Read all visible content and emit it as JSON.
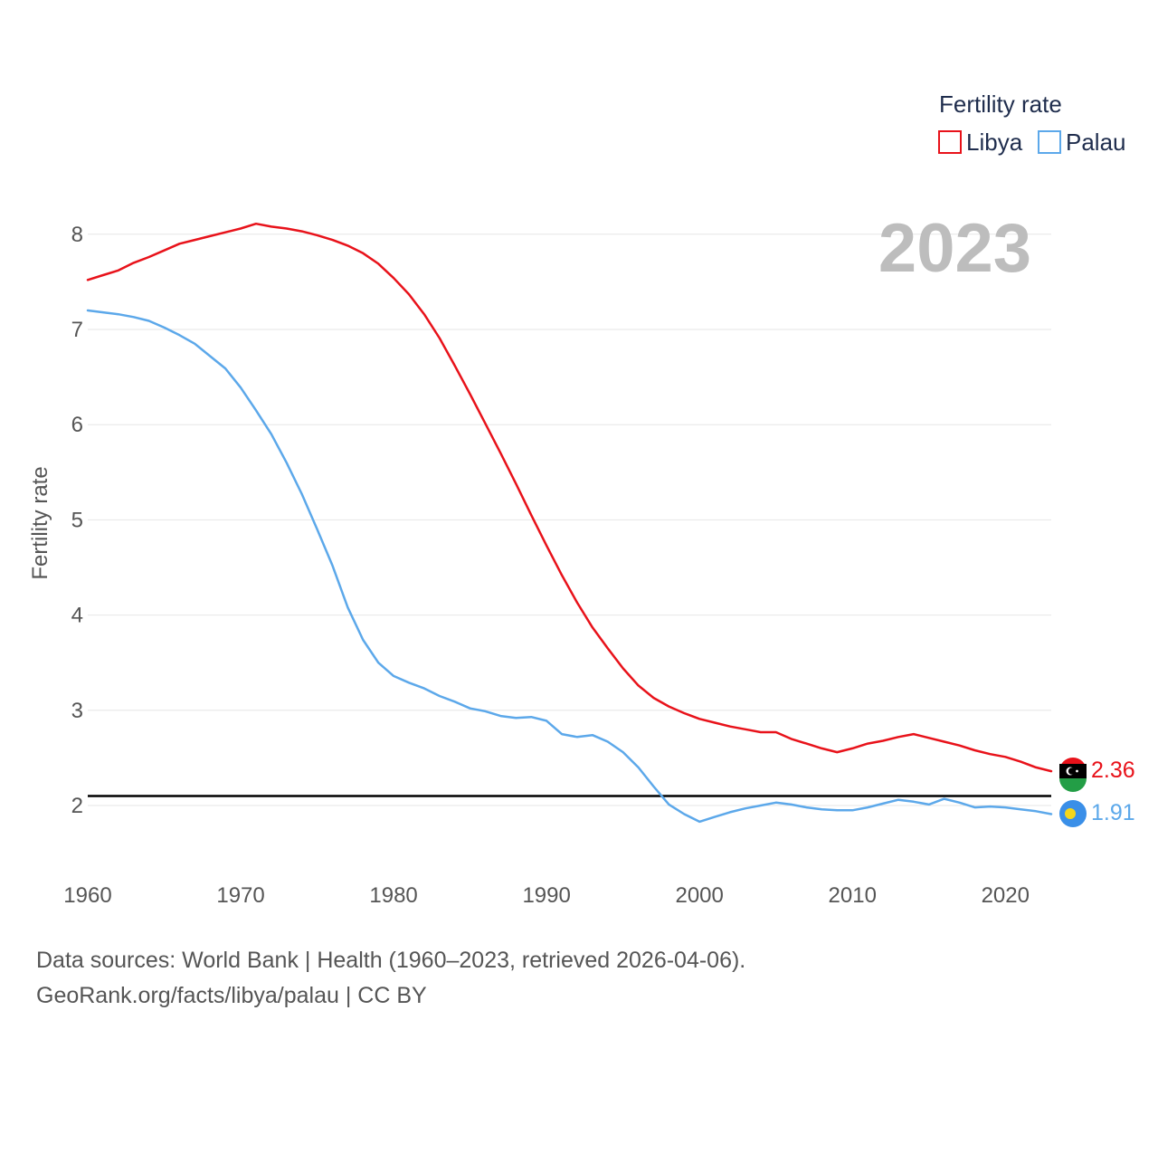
{
  "chart_data": {
    "type": "line",
    "title": "",
    "xlabel": "",
    "ylabel": "Fertility rate",
    "xlim": [
      1960,
      2023
    ],
    "ylim": [
      1.4,
      8.5
    ],
    "x_ticks": [
      "1960",
      "1970",
      "1980",
      "1990",
      "2000",
      "2010",
      "2020"
    ],
    "y_ticks": [
      "2",
      "3",
      "4",
      "5",
      "6",
      "7",
      "8"
    ],
    "year_display": "2023",
    "legend": {
      "title": "Fertility rate",
      "position": "top-right"
    },
    "reference_line": {
      "value": 2.1
    },
    "x": [
      1960,
      1961,
      1962,
      1963,
      1964,
      1965,
      1966,
      1967,
      1968,
      1969,
      1970,
      1971,
      1972,
      1973,
      1974,
      1975,
      1976,
      1977,
      1978,
      1979,
      1980,
      1981,
      1982,
      1983,
      1984,
      1985,
      1986,
      1987,
      1988,
      1989,
      1990,
      1991,
      1992,
      1993,
      1994,
      1995,
      1996,
      1997,
      1998,
      1999,
      2000,
      2001,
      2002,
      2003,
      2004,
      2005,
      2006,
      2007,
      2008,
      2009,
      2010,
      2011,
      2012,
      2013,
      2014,
      2015,
      2016,
      2017,
      2018,
      2019,
      2020,
      2021,
      2022,
      2023
    ],
    "series": [
      {
        "name": "Libya",
        "color": "#e8121a",
        "end_label": "2.36",
        "values": [
          7.52,
          7.57,
          7.62,
          7.7,
          7.76,
          7.83,
          7.9,
          7.94,
          7.98,
          8.02,
          8.06,
          8.11,
          8.08,
          8.06,
          8.03,
          7.99,
          7.94,
          7.88,
          7.8,
          7.69,
          7.54,
          7.37,
          7.16,
          6.91,
          6.62,
          6.32,
          6.01,
          5.7,
          5.38,
          5.05,
          4.73,
          4.42,
          4.13,
          3.87,
          3.65,
          3.44,
          3.26,
          3.13,
          3.04,
          2.97,
          2.91,
          2.87,
          2.83,
          2.8,
          2.77,
          2.77,
          2.7,
          2.65,
          2.6,
          2.56,
          2.6,
          2.65,
          2.68,
          2.72,
          2.75,
          2.71,
          2.67,
          2.63,
          2.58,
          2.54,
          2.51,
          2.46,
          2.4,
          2.36
        ]
      },
      {
        "name": "Palau",
        "color": "#5ca8ea",
        "end_label": "1.91",
        "values": [
          7.2,
          7.18,
          7.16,
          7.13,
          7.09,
          7.02,
          6.94,
          6.85,
          6.72,
          6.59,
          6.39,
          6.15,
          5.9,
          5.6,
          5.27,
          4.9,
          4.52,
          4.08,
          3.74,
          3.5,
          3.36,
          3.29,
          3.23,
          3.15,
          3.09,
          3.02,
          2.99,
          2.94,
          2.92,
          2.93,
          2.89,
          2.75,
          2.72,
          2.74,
          2.67,
          2.56,
          2.4,
          2.2,
          2.01,
          1.91,
          1.83,
          1.88,
          1.93,
          1.97,
          2.0,
          2.03,
          2.01,
          1.98,
          1.96,
          1.95,
          1.95,
          1.98,
          2.02,
          2.06,
          2.04,
          2.01,
          2.07,
          2.03,
          1.98,
          1.99,
          1.98,
          1.96,
          1.94,
          1.91
        ]
      }
    ]
  },
  "footer": {
    "line1": "Data sources: World Bank | Health (1960–2023, retrieved 2026-04-06).",
    "line2": "GeoRank.org/facts/libya/palau | CC BY"
  }
}
